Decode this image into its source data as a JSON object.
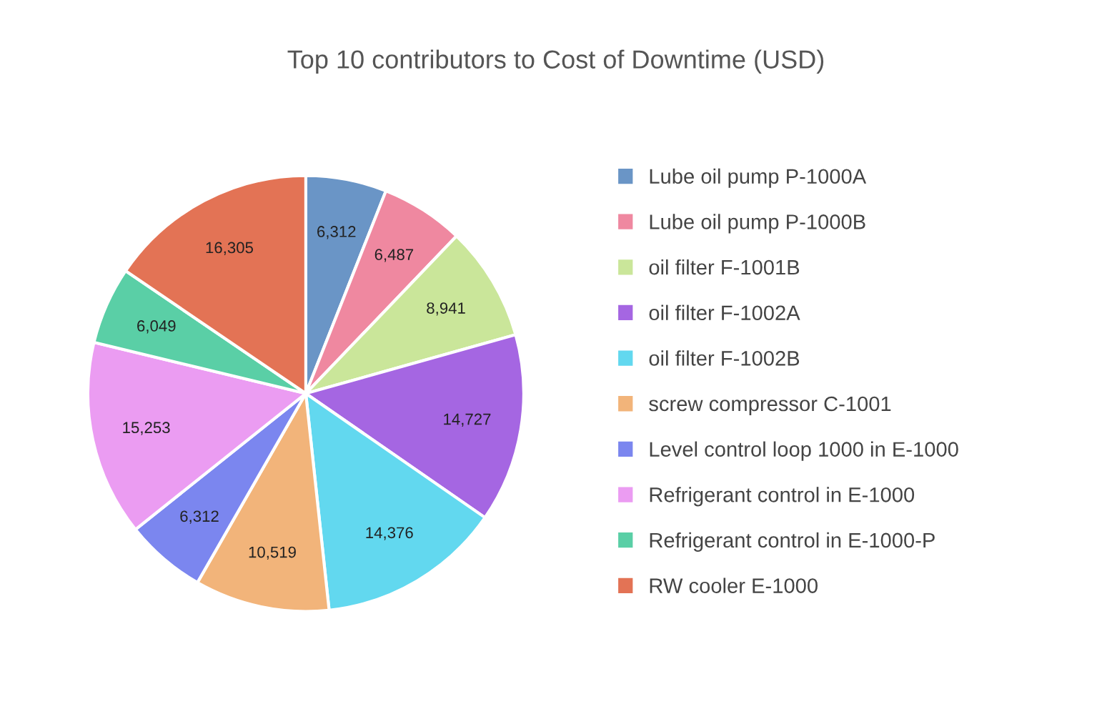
{
  "chart_data": {
    "type": "pie",
    "title": "Top 10 contributors to Cost of Downtime (USD)",
    "categories": [
      "Lube oil pump P-1000A",
      "Lube oil pump P-1000B",
      "oil filter F-1001B",
      "oil filter F-1002A",
      "oil filter F-1002B",
      "screw compressor C-1001",
      "Level control loop 1000 in E-1000",
      "Refrigerant control in E-1000",
      "Refrigerant control in E-1000-P",
      "RW cooler E-1000"
    ],
    "values": [
      6312,
      6487,
      8941,
      14727,
      14376,
      10519,
      6312,
      15253,
      6049,
      16305
    ],
    "value_labels": [
      "6,312",
      "6,487",
      "8,941",
      "14,727",
      "14,376",
      "10,519",
      "6,312",
      "15,253",
      "6,049",
      "16,305"
    ],
    "colors": [
      "#6a95c6",
      "#ef88a0",
      "#cae69a",
      "#a566e2",
      "#62d8ef",
      "#f2b47a",
      "#7b86ef",
      "#eb9cf2",
      "#5acfa6",
      "#e37355"
    ],
    "legend": "right"
  }
}
